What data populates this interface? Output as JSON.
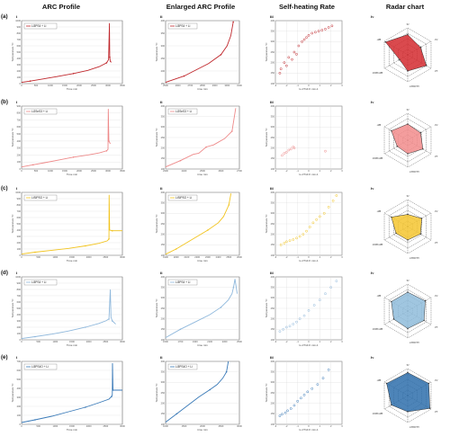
{
  "headers": [
    "ARC Profile",
    "Enlarged ARC Profile",
    "Self-heating Rate",
    "Radar chart"
  ],
  "panel_numerals": [
    "i",
    "ii",
    "iii",
    "iv"
  ],
  "row_labels": [
    "(a)",
    "(b)",
    "(c)",
    "(d)",
    "(e)"
  ],
  "legends": [
    "Li3PS4 + Li",
    "Li2SnS3 + Li",
    "LiSiPSO + Li",
    "Li3PS4 + Li",
    "Li3PS4O + Li"
  ],
  "axis_labels": {
    "arc_y": "Temperature °C",
    "arc_x": "Time min",
    "enl_x": "time min",
    "shr_x": "lo dT/dt K min-1",
    "shr_y": "Temperature °C"
  },
  "radar_labels": [
    "T1",
    "T2",
    "T3",
    "1000/T3",
    "1000/ΔH",
    "ΔH"
  ],
  "colors": {
    "series": [
      "#c0282d",
      "#ee8a8a",
      "#f2c41f",
      "#8fb8dc",
      "#3a7ab8"
    ],
    "radar_fill": [
      "#d42a2f",
      "#f28c8c",
      "#f5c630",
      "#8fbcda",
      "#2e6fac"
    ],
    "grid": "#d8d8d8",
    "frame": "#444444"
  },
  "chart_data": [
    {
      "type": "line",
      "panel": "a-i",
      "ylim": [
        0,
        1000
      ],
      "xlim": [
        0,
        3500
      ],
      "yticks": [
        0,
        100,
        200,
        300,
        400,
        500,
        600,
        700,
        800,
        900,
        1000
      ],
      "xticks": [
        0,
        500,
        1000,
        1500,
        2000,
        2500,
        3000,
        3500
      ],
      "x": [
        0,
        300,
        700,
        1200,
        1800,
        2300,
        2700,
        2950,
        3020,
        3050,
        3060,
        3080,
        3120
      ],
      "y": [
        20,
        40,
        70,
        110,
        160,
        210,
        270,
        330,
        380,
        960,
        420,
        350,
        340
      ]
    },
    {
      "type": "line",
      "panel": "a-ii",
      "ylim": [
        150,
        400
      ],
      "xlim": [
        2500,
        3100
      ],
      "yticks": [
        150,
        200,
        250,
        300,
        350,
        400
      ],
      "xticks": [
        2500,
        2600,
        2700,
        2800,
        2900,
        3000,
        3100
      ],
      "x": [
        2500,
        2650,
        2750,
        2850,
        2950,
        3000,
        3030,
        3050
      ],
      "y": [
        155,
        180,
        205,
        230,
        265,
        300,
        340,
        395
      ]
    },
    {
      "type": "scatter",
      "panel": "a-iii",
      "ylim": [
        100,
        400
      ],
      "xlim": [
        -3,
        3
      ],
      "yticks": [
        100,
        150,
        200,
        250,
        300,
        350,
        400
      ],
      "xticks": [
        -3,
        -2,
        -1,
        0,
        1,
        2,
        3
      ],
      "x": [
        -2.6,
        -2.5,
        -2.2,
        -2.0,
        -1.8,
        -1.5,
        -1.3,
        -1.1,
        -0.9,
        -0.6,
        -0.4,
        -0.2,
        0.0,
        0.3,
        0.6,
        0.9,
        1.2,
        1.5,
        1.8,
        2.1
      ],
      "y": [
        150,
        170,
        200,
        185,
        225,
        215,
        250,
        240,
        280,
        300,
        310,
        320,
        330,
        340,
        345,
        350,
        355,
        360,
        368,
        375
      ]
    },
    {
      "type": "radar",
      "panel": "a-iv",
      "values": [
        0.75,
        0.55,
        0.8,
        0.6,
        0.35,
        0.95
      ]
    },
    {
      "type": "line",
      "panel": "b-i",
      "ylim": [
        0,
        900
      ],
      "xlim": [
        0,
        3500
      ],
      "yticks": [
        0,
        100,
        200,
        300,
        400,
        500,
        600,
        700,
        800,
        900
      ],
      "xticks": [
        0,
        500,
        1000,
        1500,
        2000,
        2500,
        3000,
        3500
      ],
      "x": [
        0,
        400,
        800,
        1300,
        1800,
        2300,
        2700,
        2950,
        3000,
        3010,
        3030,
        3080
      ],
      "y": [
        30,
        60,
        90,
        130,
        170,
        200,
        230,
        260,
        280,
        860,
        400,
        360
      ]
    },
    {
      "type": "line",
      "panel": "b-ii",
      "ylim": [
        100,
        400
      ],
      "xlim": [
        2300,
        2700
      ],
      "yticks": [
        100,
        150,
        200,
        250,
        300,
        350,
        400
      ],
      "xticks": [
        2300,
        2400,
        2500,
        2600,
        2700
      ],
      "x": [
        2300,
        2380,
        2450,
        2480,
        2520,
        2560,
        2620,
        2660,
        2680
      ],
      "y": [
        110,
        140,
        170,
        175,
        205,
        215,
        245,
        280,
        390
      ]
    },
    {
      "type": "scatter",
      "panel": "b-iii",
      "ylim": [
        100,
        400
      ],
      "xlim": [
        -3,
        3
      ],
      "yticks": [
        100,
        150,
        200,
        250,
        300,
        350,
        400
      ],
      "xticks": [
        -3,
        -2,
        -1,
        0,
        1,
        2,
        3
      ],
      "x": [
        -2.4,
        -2.2,
        -2.0,
        -1.8,
        -1.6,
        -1.4,
        -1.3,
        1.5
      ],
      "y": [
        165,
        175,
        180,
        190,
        195,
        205,
        200,
        185
      ]
    },
    {
      "type": "radar",
      "panel": "b-iv",
      "values": [
        0.6,
        0.55,
        0.65,
        0.5,
        0.45,
        0.7
      ]
    },
    {
      "type": "line",
      "panel": "c-i",
      "ylim": [
        0,
        1000
      ],
      "xlim": [
        0,
        3000
      ],
      "yticks": [
        0,
        100,
        200,
        300,
        400,
        500,
        600,
        700,
        800,
        900,
        1000
      ],
      "xticks": [
        0,
        500,
        1000,
        1500,
        2000,
        2500,
        3000
      ],
      "x": [
        0,
        400,
        900,
        1400,
        1900,
        2300,
        2550,
        2600,
        2605,
        2620,
        2700,
        3000
      ],
      "y": [
        20,
        50,
        80,
        110,
        150,
        190,
        230,
        260,
        960,
        400,
        390,
        390
      ]
    },
    {
      "type": "line",
      "panel": "c-ii",
      "ylim": [
        100,
        400
      ],
      "xlim": [
        1900,
        2600
      ],
      "yticks": [
        100,
        150,
        200,
        250,
        300,
        350,
        400
      ],
      "xticks": [
        1900,
        2000,
        2100,
        2200,
        2300,
        2400,
        2500,
        2600
      ],
      "x": [
        1900,
        2000,
        2100,
        2200,
        2300,
        2400,
        2450,
        2500,
        2520
      ],
      "y": [
        105,
        130,
        160,
        190,
        220,
        255,
        285,
        340,
        395
      ]
    },
    {
      "type": "scatter",
      "panel": "c-iii",
      "ylim": [
        100,
        400
      ],
      "xlim": [
        -3,
        3
      ],
      "yticks": [
        100,
        150,
        200,
        250,
        300,
        350,
        400
      ],
      "xticks": [
        -3,
        -2,
        -1,
        0,
        1,
        2,
        3
      ],
      "x": [
        -2.5,
        -2.2,
        -2.0,
        -1.7,
        -1.4,
        -1.1,
        -0.8,
        -0.5,
        -0.2,
        0.1,
        0.4,
        0.7,
        1.0,
        1.4,
        1.8,
        2.2,
        2.5
      ],
      "y": [
        150,
        158,
        165,
        170,
        175,
        182,
        190,
        200,
        215,
        235,
        255,
        270,
        285,
        300,
        330,
        360,
        385
      ]
    },
    {
      "type": "radar",
      "panel": "c-iv",
      "values": [
        0.45,
        0.6,
        0.55,
        0.5,
        0.5,
        0.7
      ]
    },
    {
      "type": "line",
      "panel": "d-i",
      "ylim": [
        0,
        1000
      ],
      "xlim": [
        0,
        3000
      ],
      "yticks": [
        0,
        100,
        200,
        300,
        400,
        500,
        600,
        700,
        800,
        900,
        1000
      ],
      "xticks": [
        0,
        500,
        1000,
        1500,
        2000,
        2500,
        3000
      ],
      "x": [
        0,
        400,
        900,
        1400,
        1900,
        2300,
        2500,
        2600,
        2640,
        2660,
        2700,
        2800
      ],
      "y": [
        20,
        50,
        90,
        140,
        200,
        260,
        300,
        330,
        800,
        360,
        300,
        250
      ]
    },
    {
      "type": "line",
      "panel": "d-ii",
      "ylim": [
        100,
        400
      ],
      "xlim": [
        1500,
        2500
      ],
      "yticks": [
        100,
        150,
        200,
        250,
        300,
        350,
        400
      ],
      "xticks": [
        1500,
        1700,
        1900,
        2100,
        2300,
        2500
      ],
      "x": [
        1500,
        1700,
        1900,
        2100,
        2250,
        2350,
        2400,
        2420,
        2440,
        2470
      ],
      "y": [
        110,
        150,
        185,
        220,
        255,
        290,
        320,
        350,
        390,
        320
      ]
    },
    {
      "type": "scatter",
      "panel": "d-iii",
      "ylim": [
        100,
        400
      ],
      "xlim": [
        -3,
        3
      ],
      "yticks": [
        100,
        150,
        200,
        250,
        300,
        350,
        400
      ],
      "xticks": [
        -3,
        -2,
        -1,
        0,
        1,
        2,
        3
      ],
      "x": [
        -2.6,
        -2.3,
        -2.0,
        -1.7,
        -1.4,
        -1.1,
        -0.8,
        -0.4,
        0.0,
        0.5,
        1.0,
        1.5,
        2.0,
        2.5
      ],
      "y": [
        140,
        150,
        160,
        165,
        175,
        185,
        200,
        215,
        240,
        265,
        290,
        320,
        350,
        380
      ]
    },
    {
      "type": "radar",
      "panel": "d-iv",
      "values": [
        0.7,
        0.75,
        0.7,
        0.65,
        0.6,
        0.7
      ]
    },
    {
      "type": "line",
      "panel": "e-i",
      "ylim": [
        0,
        700
      ],
      "xlim": [
        0,
        3000
      ],
      "yticks": [
        0,
        100,
        200,
        300,
        400,
        500,
        600,
        700
      ],
      "xticks": [
        0,
        500,
        1000,
        1500,
        2000,
        2500,
        3000
      ],
      "x": [
        0,
        400,
        900,
        1400,
        1900,
        2300,
        2600,
        2680,
        2700,
        2705,
        2720,
        3000
      ],
      "y": [
        20,
        50,
        90,
        140,
        190,
        240,
        280,
        310,
        330,
        680,
        380,
        380
      ]
    },
    {
      "type": "line",
      "panel": "e-ii",
      "ylim": [
        100,
        400
      ],
      "xlim": [
        1000,
        3000
      ],
      "yticks": [
        100,
        150,
        200,
        250,
        300,
        350,
        400
      ],
      "xticks": [
        1000,
        1500,
        2000,
        2500,
        3000
      ],
      "x": [
        1000,
        1300,
        1600,
        1900,
        2200,
        2400,
        2550,
        2650,
        2700
      ],
      "y": [
        110,
        150,
        190,
        230,
        265,
        290,
        320,
        350,
        400
      ]
    },
    {
      "type": "scatter",
      "panel": "e-iii",
      "ylim": [
        100,
        400
      ],
      "xlim": [
        -3,
        3
      ],
      "yticks": [
        100,
        150,
        200,
        250,
        300,
        350,
        400
      ],
      "xticks": [
        -3,
        -2,
        -1,
        0,
        1,
        2,
        3
      ],
      "x": [
        -2.6,
        -2.4,
        -2.1,
        -1.9,
        -1.6,
        -1.3,
        -1.0,
        -0.7,
        -0.4,
        -0.1,
        0.3,
        0.8,
        1.3,
        1.8
      ],
      "y": [
        140,
        148,
        155,
        165,
        175,
        190,
        210,
        225,
        240,
        255,
        270,
        290,
        320,
        360
      ]
    },
    {
      "type": "radar",
      "panel": "e-iv",
      "values": [
        0.85,
        0.9,
        0.95,
        0.6,
        0.7,
        0.9
      ]
    }
  ]
}
